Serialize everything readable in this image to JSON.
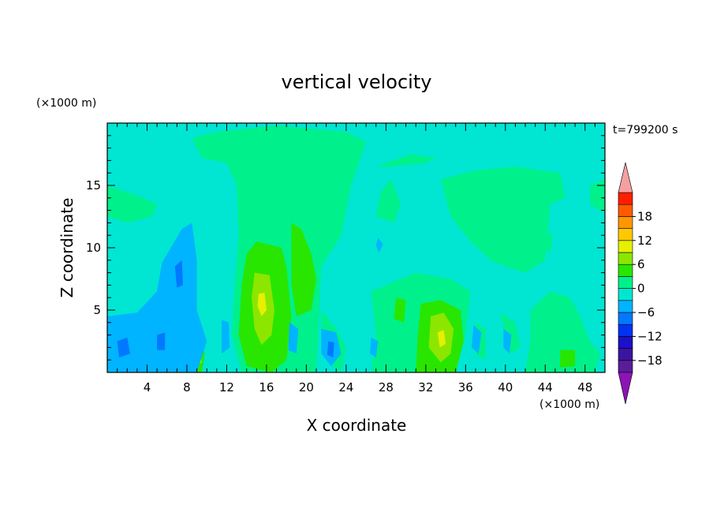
{
  "chart_data": {
    "type": "heatmap",
    "title": "vertical velocity",
    "time_label": "t=799200 s",
    "xlabel": "X coordinate",
    "ylabel": "Z coordinate",
    "x_unit": "(×1000 m)",
    "y_unit": "(×1000 m)",
    "xlim": [
      0,
      50
    ],
    "ylim": [
      0,
      20
    ],
    "x_ticks": [
      4,
      8,
      12,
      16,
      20,
      24,
      28,
      32,
      36,
      40,
      44,
      48
    ],
    "y_ticks": [
      5,
      10,
      15
    ],
    "background_level": -1.5,
    "colorbar": {
      "levels": [
        -21,
        -18,
        -15,
        -12,
        -9,
        -6,
        -3,
        0,
        3,
        6,
        9,
        12,
        15,
        18,
        21
      ],
      "tick_labels": [
        18,
        12,
        6,
        0,
        -6,
        -12,
        -18
      ],
      "colors": [
        "#5a1d9a",
        "#3c14a0",
        "#1c10c8",
        "#0032f0",
        "#0078ff",
        "#00b4ff",
        "#00e6d2",
        "#00f08c",
        "#28e600",
        "#8ce600",
        "#e6f000",
        "#ffc800",
        "#ff9600",
        "#ff5a00",
        "#ff1e00"
      ],
      "under_color": "#8c14b4",
      "over_color": "#f5a0a0"
    },
    "regions": [
      {
        "level": 1.5,
        "points": [
          [
            17,
            19.8
          ],
          [
            24,
            19.3
          ],
          [
            26,
            18.5
          ],
          [
            24.5,
            15
          ],
          [
            23.5,
            11
          ],
          [
            21.5,
            8.5
          ],
          [
            21.2,
            3
          ],
          [
            21,
            0
          ],
          [
            13.5,
            0
          ],
          [
            12.5,
            3
          ],
          [
            12.8,
            7
          ],
          [
            13.2,
            11
          ],
          [
            13,
            15
          ],
          [
            12,
            16.8
          ],
          [
            9.5,
            17.2
          ],
          [
            8.5,
            18.8
          ],
          [
            11,
            19.3
          ]
        ]
      },
      {
        "level": 1.5,
        "points": [
          [
            27,
            12.5
          ],
          [
            27.5,
            14.5
          ],
          [
            28.5,
            15.5
          ],
          [
            29.5,
            13.5
          ],
          [
            28.8,
            12
          ]
        ]
      },
      {
        "level": 1.5,
        "points": [
          [
            33.5,
            15.5
          ],
          [
            37,
            16.2
          ],
          [
            41,
            16.5
          ],
          [
            45.5,
            16
          ],
          [
            46,
            14
          ],
          [
            44.5,
            13.5
          ],
          [
            44,
            9
          ],
          [
            42,
            8
          ],
          [
            40,
            8.5
          ],
          [
            38.5,
            9
          ],
          [
            36.5,
            10.5
          ],
          [
            34.5,
            12.5
          ]
        ]
      },
      {
        "level": 1.5,
        "points": [
          [
            0,
            15
          ],
          [
            3,
            14.2
          ],
          [
            5,
            13.5
          ],
          [
            4.5,
            12.5
          ],
          [
            2,
            12
          ],
          [
            0,
            12.5
          ]
        ]
      },
      {
        "level": 1.5,
        "points": [
          [
            27,
            16.5
          ],
          [
            30.5,
            17.5
          ],
          [
            33,
            17.2
          ],
          [
            32,
            16.8
          ],
          [
            28.5,
            16.5
          ]
        ]
      },
      {
        "level": 1.5,
        "points": [
          [
            48.5,
            15
          ],
          [
            50,
            15.5
          ],
          [
            50,
            12.8
          ],
          [
            48.5,
            13.5
          ]
        ]
      },
      {
        "level": 1.5,
        "points": [
          [
            44.2,
            11
          ],
          [
            44.8,
            11.2
          ],
          [
            44.5,
            9.5
          ],
          [
            44,
            10
          ]
        ]
      },
      {
        "level": 1.5,
        "points": [
          [
            26.5,
            6.5
          ],
          [
            31,
            8
          ],
          [
            34.5,
            7.5
          ],
          [
            36.5,
            6.5
          ],
          [
            36,
            3
          ],
          [
            35,
            0
          ],
          [
            26.5,
            0
          ],
          [
            27,
            3
          ]
        ]
      },
      {
        "level": 1.5,
        "points": [
          [
            42.5,
            5
          ],
          [
            44.5,
            6.5
          ],
          [
            46.5,
            6
          ],
          [
            47.5,
            4.5
          ],
          [
            48.5,
            2.5
          ],
          [
            49.5,
            1.5
          ],
          [
            49,
            0
          ],
          [
            42,
            0
          ],
          [
            42.5,
            2.5
          ]
        ]
      },
      {
        "level": 1.5,
        "points": [
          [
            21.5,
            5
          ],
          [
            23,
            3.5
          ],
          [
            24,
            2
          ],
          [
            23.5,
            0
          ],
          [
            22,
            1
          ],
          [
            21.5,
            3
          ]
        ]
      },
      {
        "level": 1.5,
        "points": [
          [
            37,
            4
          ],
          [
            38,
            3.5
          ],
          [
            38,
            1
          ],
          [
            37,
            1.5
          ]
        ]
      },
      {
        "level": 1.5,
        "points": [
          [
            39.5,
            4.8
          ],
          [
            41,
            4
          ],
          [
            41.5,
            2
          ],
          [
            40.5,
            1.5
          ],
          [
            40,
            3
          ]
        ]
      },
      {
        "level": 4.5,
        "points": [
          [
            15,
            10.5
          ],
          [
            17.5,
            10
          ],
          [
            18,
            8.5
          ],
          [
            18.5,
            4.5
          ],
          [
            18,
            1
          ],
          [
            16.5,
            0
          ],
          [
            14,
            0.5
          ],
          [
            13.2,
            3
          ],
          [
            13.5,
            7
          ],
          [
            14,
            9.5
          ]
        ]
      },
      {
        "level": 4.5,
        "points": [
          [
            18.5,
            12
          ],
          [
            19.5,
            11.5
          ],
          [
            20.5,
            9.5
          ],
          [
            21,
            7.5
          ],
          [
            20.5,
            5
          ],
          [
            19,
            4.5
          ],
          [
            18.5,
            7
          ],
          [
            18.5,
            10
          ]
        ]
      },
      {
        "level": 4.5,
        "points": [
          [
            29,
            6
          ],
          [
            30,
            5.8
          ],
          [
            29.8,
            4
          ],
          [
            28.8,
            4.3
          ]
        ]
      },
      {
        "level": 4.5,
        "points": [
          [
            31.5,
            5.5
          ],
          [
            33.5,
            5.8
          ],
          [
            35.5,
            5
          ],
          [
            35.8,
            2.5
          ],
          [
            35,
            0
          ],
          [
            31,
            0
          ],
          [
            31.2,
            3
          ]
        ]
      },
      {
        "level": 4.5,
        "points": [
          [
            8.2,
            2.5
          ],
          [
            9.2,
            2.8
          ],
          [
            9.8,
            1.5
          ],
          [
            9.5,
            0
          ],
          [
            8,
            0
          ]
        ]
      },
      {
        "level": 4.5,
        "points": [
          [
            45.5,
            1.8
          ],
          [
            47,
            1.8
          ],
          [
            47,
            0.5
          ],
          [
            45.5,
            0.4
          ]
        ]
      },
      {
        "level": 7.5,
        "points": [
          [
            14.8,
            8
          ],
          [
            16.3,
            7.8
          ],
          [
            16.8,
            5
          ],
          [
            16.5,
            3
          ],
          [
            15.5,
            2.2
          ],
          [
            14.8,
            3.5
          ],
          [
            14.5,
            6
          ]
        ]
      },
      {
        "level": 7.5,
        "points": [
          [
            32.5,
            4.5
          ],
          [
            33.8,
            4.8
          ],
          [
            34.8,
            3.5
          ],
          [
            34.5,
            1.5
          ],
          [
            33.5,
            0.8
          ],
          [
            32.3,
            2
          ]
        ]
      },
      {
        "level": 7.5,
        "points": [
          [
            8.6,
            1.8
          ],
          [
            9.3,
            2
          ],
          [
            9.5,
            0.8
          ],
          [
            8.8,
            0.4
          ]
        ]
      },
      {
        "level": 10.5,
        "points": [
          [
            15.2,
            6.3
          ],
          [
            15.8,
            6.4
          ],
          [
            16,
            5
          ],
          [
            15.5,
            4.5
          ],
          [
            15.1,
            5.3
          ]
        ]
      },
      {
        "level": 10.5,
        "points": [
          [
            33.2,
            3.2
          ],
          [
            33.8,
            3.4
          ],
          [
            34,
            2.3
          ],
          [
            33.4,
            2
          ]
        ]
      },
      {
        "level": -4.5,
        "points": [
          [
            5.5,
            8.8
          ],
          [
            7.5,
            11.5
          ],
          [
            8.5,
            12
          ],
          [
            9,
            9
          ],
          [
            9,
            5
          ],
          [
            10,
            2.5
          ],
          [
            9,
            0
          ],
          [
            0,
            0
          ],
          [
            0,
            4.5
          ],
          [
            3,
            4.8
          ],
          [
            5,
            6.5
          ]
        ]
      },
      {
        "level": -4.5,
        "points": [
          [
            11.5,
            4.2
          ],
          [
            12.2,
            4
          ],
          [
            12.3,
            2
          ],
          [
            11.5,
            1.5
          ]
        ]
      },
      {
        "level": -4.5,
        "points": [
          [
            18.3,
            4
          ],
          [
            19.2,
            3.5
          ],
          [
            19,
            1.5
          ],
          [
            18.2,
            1.8
          ]
        ]
      },
      {
        "level": -4.5,
        "points": [
          [
            21.5,
            3.5
          ],
          [
            23,
            3.2
          ],
          [
            23.5,
            1.5
          ],
          [
            22.5,
            0.5
          ],
          [
            21.5,
            1.5
          ]
        ]
      },
      {
        "level": -4.5,
        "points": [
          [
            36.8,
            3.8
          ],
          [
            37.6,
            3.2
          ],
          [
            37.3,
            1.5
          ],
          [
            36.6,
            2
          ]
        ]
      },
      {
        "level": -4.5,
        "points": [
          [
            26.5,
            2.8
          ],
          [
            27.2,
            2.5
          ],
          [
            27,
            1.2
          ],
          [
            26.4,
            1.5
          ]
        ]
      },
      {
        "level": -4.5,
        "points": [
          [
            27.2,
            10.8
          ],
          [
            27.7,
            10.3
          ],
          [
            27.3,
            9.6
          ],
          [
            27,
            10.2
          ]
        ]
      },
      {
        "level": -4.5,
        "points": [
          [
            39.8,
            3.5
          ],
          [
            40.6,
            3
          ],
          [
            40.4,
            1.5
          ],
          [
            39.8,
            2
          ]
        ]
      },
      {
        "level": -7.5,
        "points": [
          [
            6.8,
            8.5
          ],
          [
            7.5,
            9
          ],
          [
            7.6,
            7
          ],
          [
            7,
            6.8
          ]
        ]
      },
      {
        "level": -7.5,
        "points": [
          [
            1,
            2.5
          ],
          [
            2,
            2.8
          ],
          [
            2.3,
            1.5
          ],
          [
            1.2,
            1.2
          ]
        ]
      },
      {
        "level": -7.5,
        "points": [
          [
            5,
            3
          ],
          [
            5.8,
            3.2
          ],
          [
            5.8,
            1.8
          ],
          [
            5,
            1.8
          ]
        ]
      },
      {
        "level": -7.5,
        "points": [
          [
            22.2,
            2.5
          ],
          [
            22.8,
            2.4
          ],
          [
            22.7,
            1.2
          ],
          [
            22.1,
            1.4
          ]
        ]
      }
    ]
  }
}
